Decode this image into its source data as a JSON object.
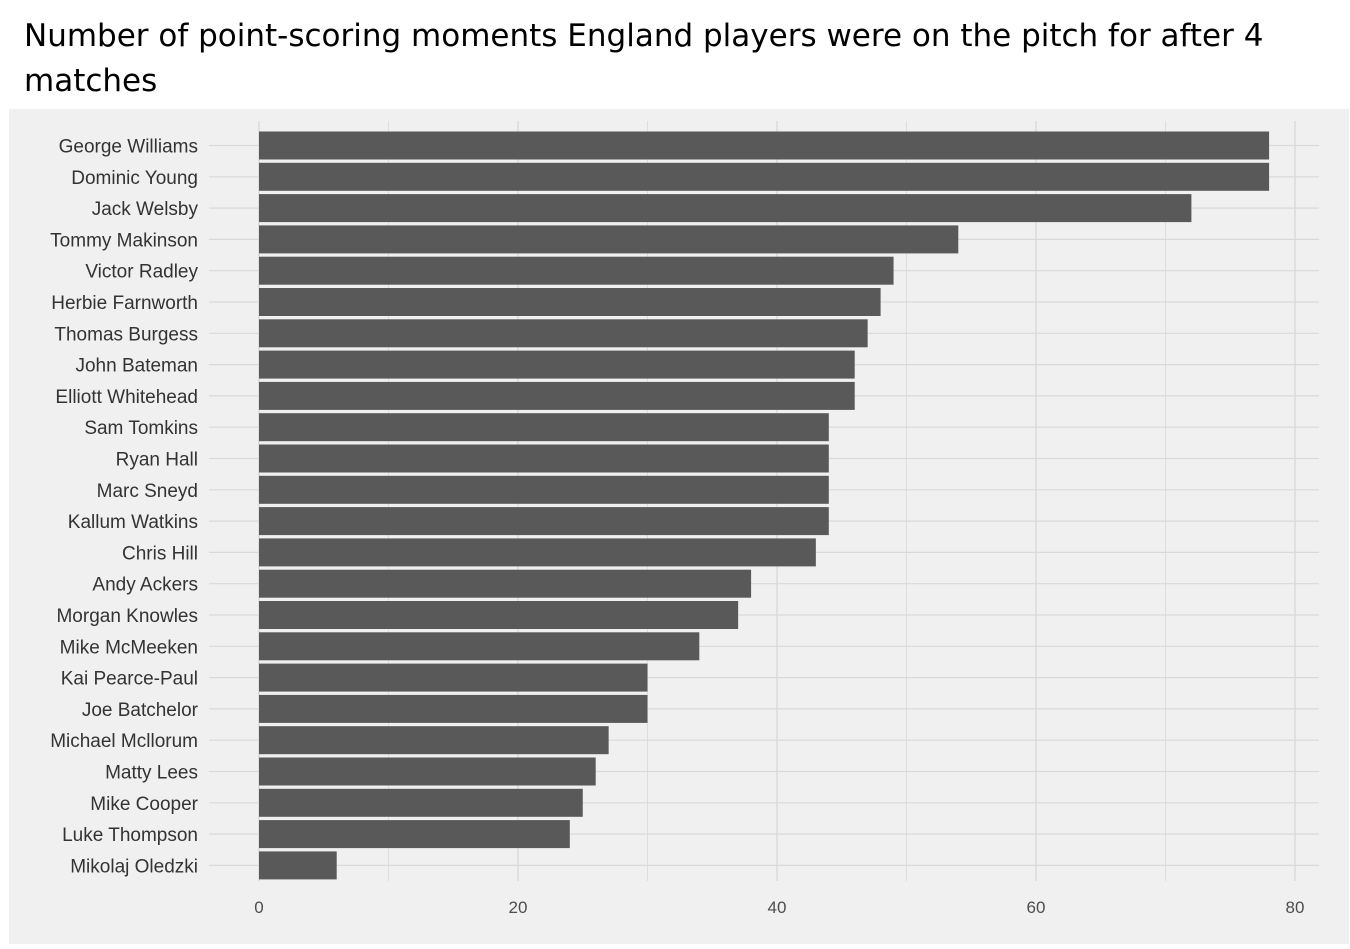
{
  "chart_data": {
    "type": "bar",
    "orientation": "horizontal",
    "title": "Number of point-scoring moments England players were on the pitch for after 4 matches",
    "xlabel": "",
    "ylabel": "",
    "xlim": [
      0,
      80
    ],
    "x_ticks": [
      "0",
      "20",
      "40",
      "60",
      "80"
    ],
    "grid": true,
    "legend": "none",
    "bar_color": "#595959",
    "panel_color": "#f0f0f0",
    "grid_color": "#d9d9d9",
    "categories": [
      "George Williams",
      "Dominic Young",
      "Jack Welsby",
      "Tommy Makinson",
      "Victor Radley",
      "Herbie Farnworth",
      "Thomas Burgess",
      "John Bateman",
      "Elliott Whitehead",
      "Sam Tomkins",
      "Ryan Hall",
      "Marc Sneyd",
      "Kallum Watkins",
      "Chris Hill",
      "Andy Ackers",
      "Morgan Knowles",
      "Mike McMeeken",
      "Kai Pearce-Paul",
      "Joe Batchelor",
      "Michael Mcllorum",
      "Matty Lees",
      "Mike Cooper",
      "Luke Thompson",
      "Mikolaj Oledzki"
    ],
    "values": [
      78,
      78,
      72,
      54,
      49,
      48,
      47,
      46,
      46,
      44,
      44,
      44,
      44,
      43,
      38,
      37,
      34,
      30,
      30,
      27,
      26,
      25,
      24,
      6
    ]
  }
}
